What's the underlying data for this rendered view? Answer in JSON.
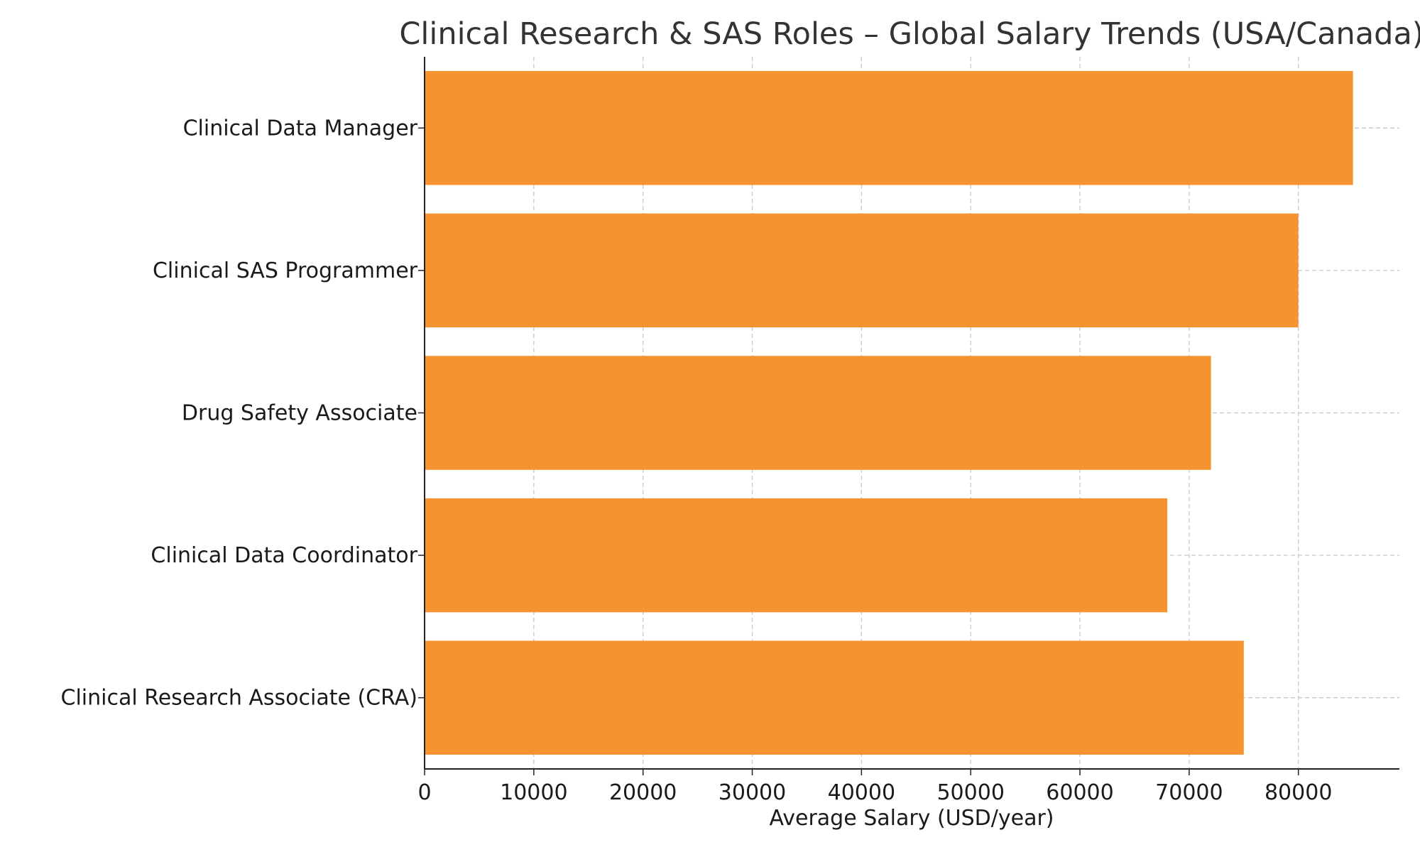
{
  "chart_data": {
    "type": "bar",
    "orientation": "horizontal",
    "title": "Clinical Research & SAS Roles – Global Salary Trends (USA/Canada)",
    "xlabel": "Average Salary (USD/year)",
    "ylabel": "",
    "categories": [
      "Clinical Data Manager",
      "Clinical SAS Programmer",
      "Drug Safety Associate",
      "Clinical Data Coordinator",
      "Clinical Research Associate (CRA)"
    ],
    "values": [
      85000,
      80000,
      72000,
      68000,
      75000
    ],
    "xlim": [
      0,
      89250
    ],
    "xticks": [
      "0",
      "10000",
      "20000",
      "30000",
      "40000",
      "50000",
      "60000",
      "70000",
      "80000"
    ],
    "grid": true,
    "bar_color": "#f59331"
  }
}
